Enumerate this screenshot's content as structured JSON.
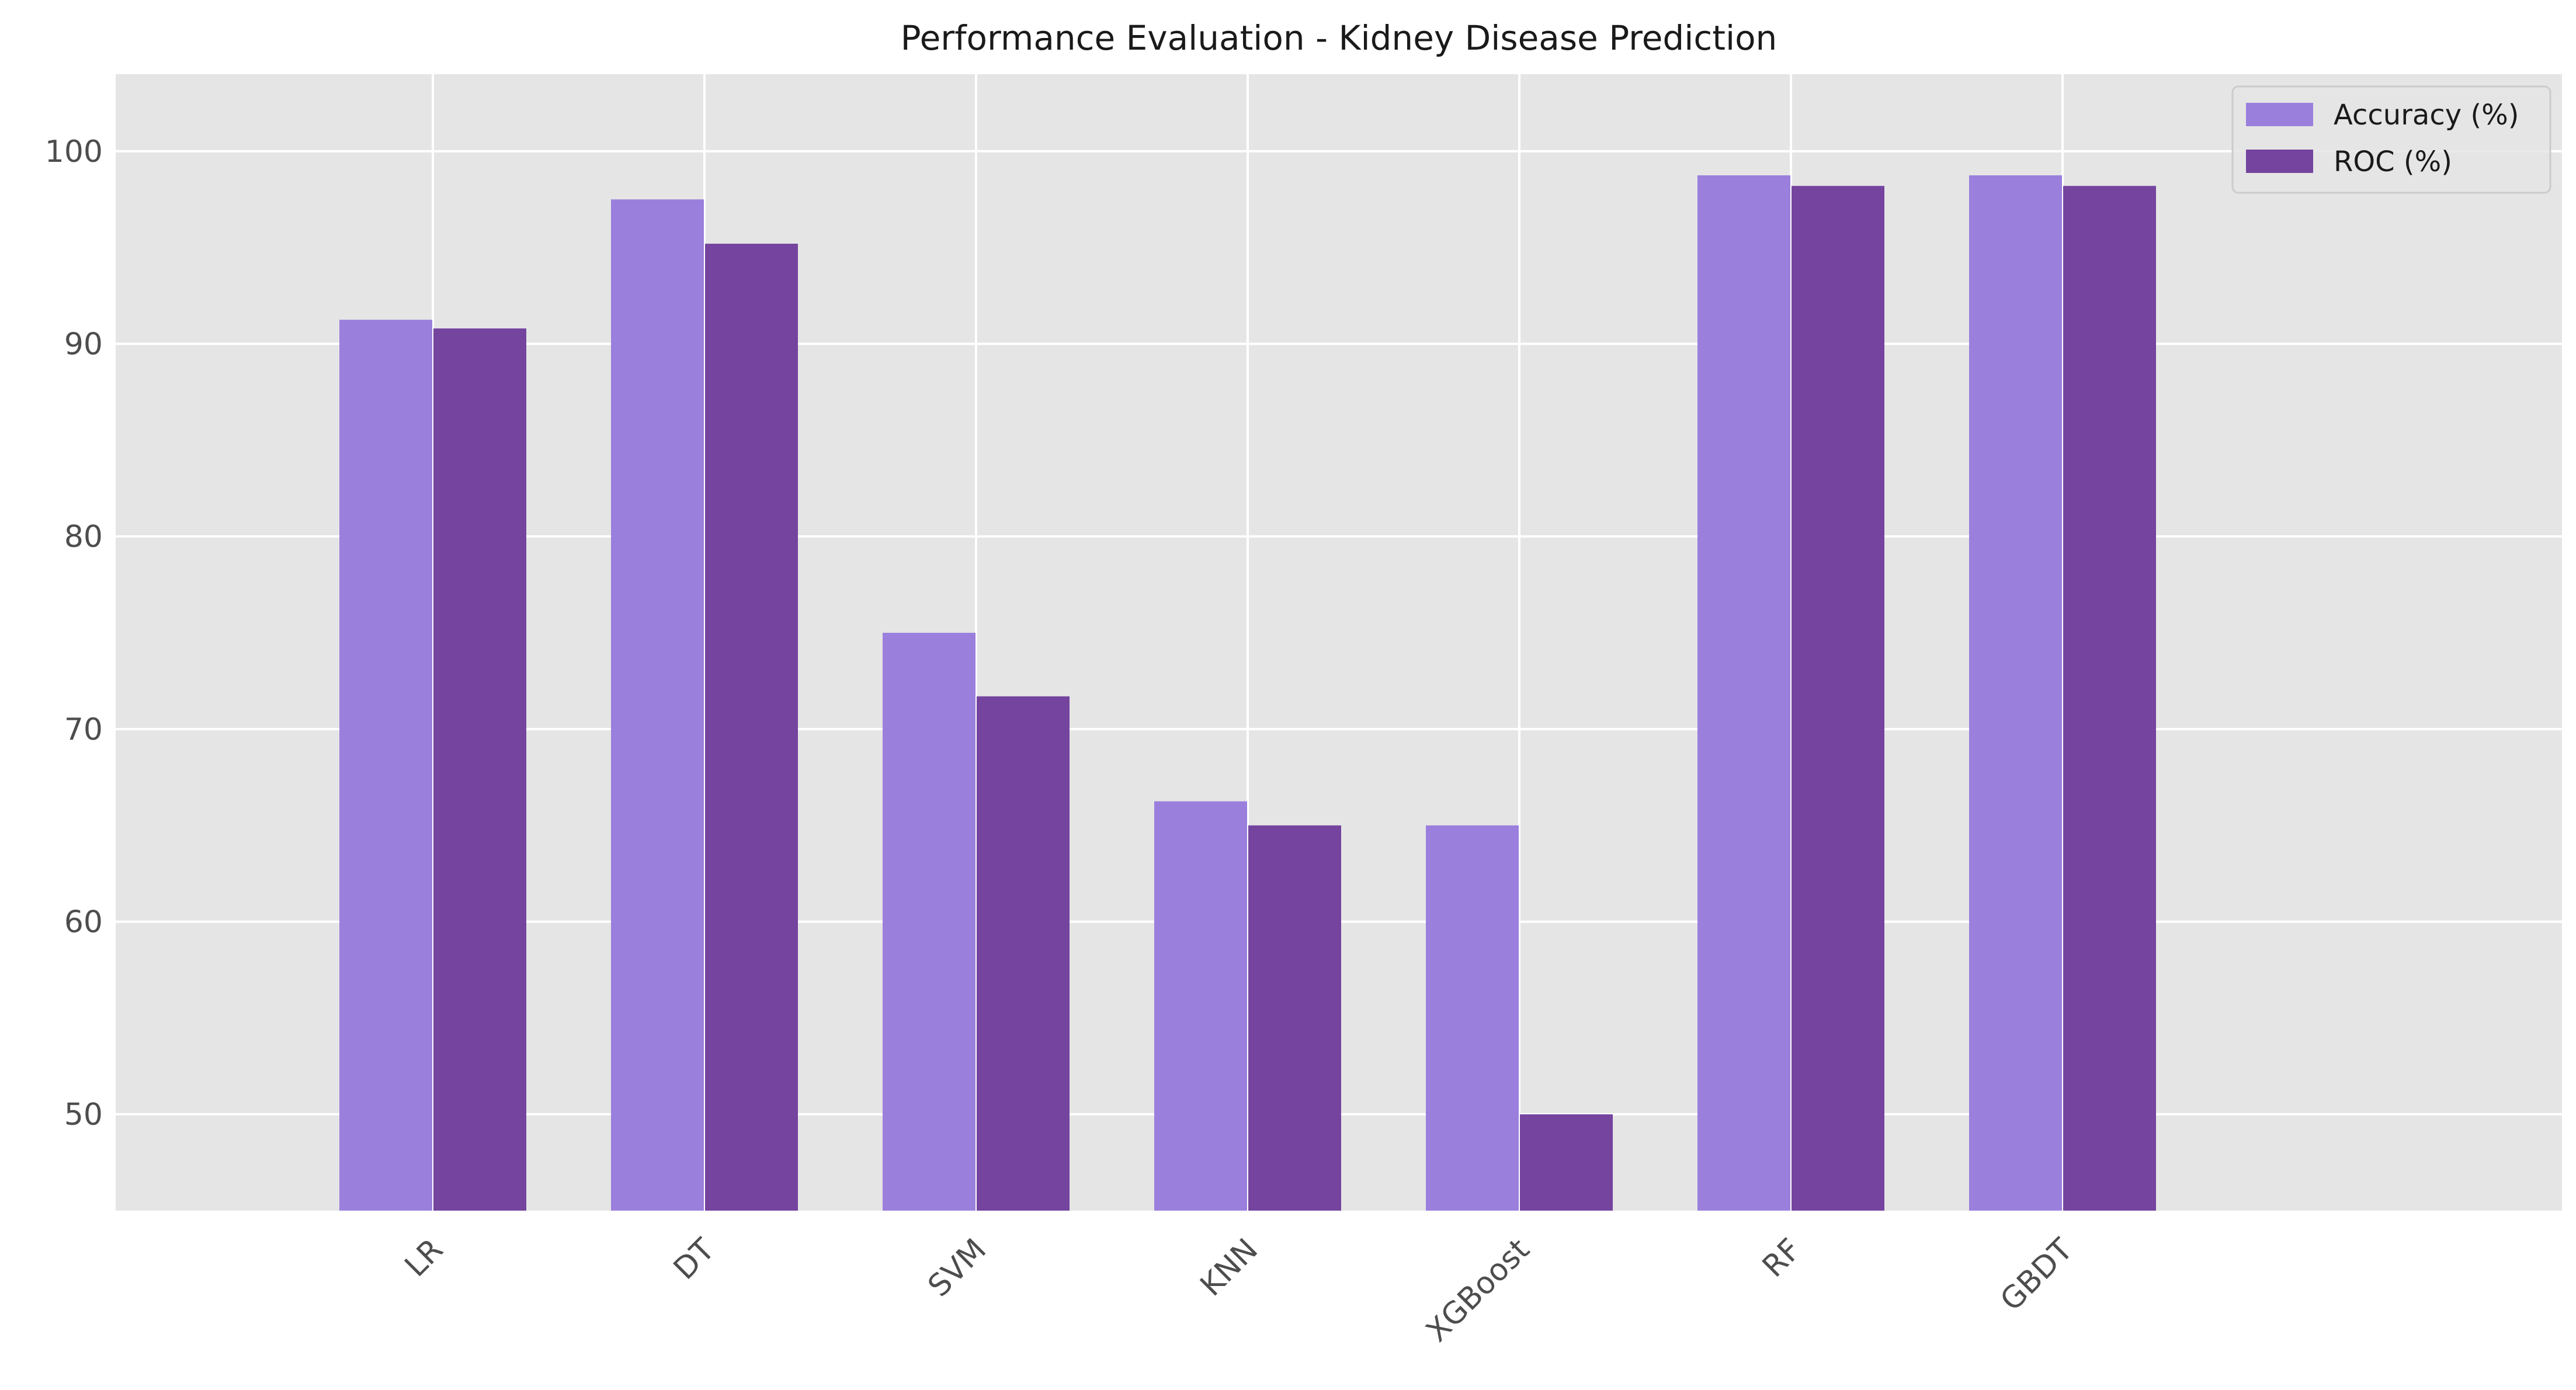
{
  "chart_data": {
    "type": "bar",
    "title": "Performance Evaluation - Kidney Disease Prediction",
    "xlabel": "",
    "ylabel": "",
    "categories": [
      "LR",
      "DT",
      "SVM",
      "KNN",
      "XGBoost",
      "RF",
      "GBDT"
    ],
    "series": [
      {
        "name": "Accuracy (%)",
        "values": [
          91.25,
          97.5,
          75.0,
          66.25,
          65.0,
          98.75,
          98.75
        ],
        "color": "#9b7fdd"
      },
      {
        "name": "ROC (%)",
        "values": [
          90.8,
          95.2,
          71.7,
          65.0,
          50.0,
          98.2,
          98.2
        ],
        "color": "#74449f"
      }
    ],
    "yticks": [
      50,
      60,
      70,
      80,
      90,
      100
    ],
    "ylim": [
      45,
      104
    ],
    "grid": true,
    "legend_position": "top-right",
    "background_color": "#e5e5e5",
    "grid_color": "#ffffff"
  }
}
